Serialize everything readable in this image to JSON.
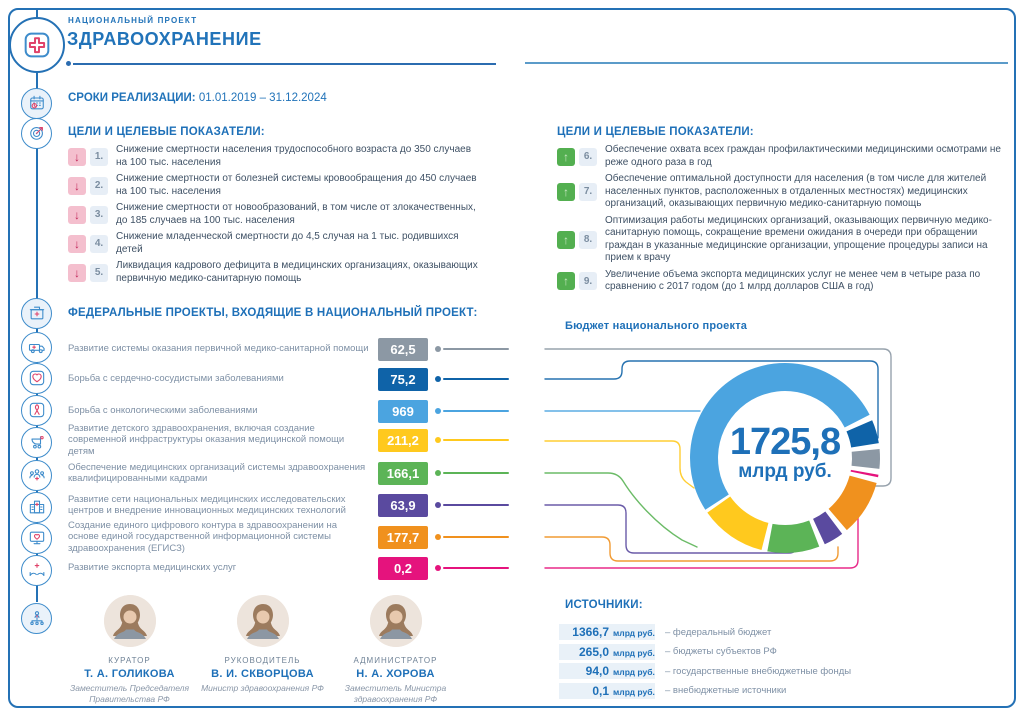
{
  "header": {
    "project_label": "НАЦИОНАЛЬНЫЙ ПРОЕКТ",
    "title": "ЗДРАВООХРАНЕНИЕ",
    "dates_label": "СРОКИ РЕАЛИЗАЦИИ:",
    "dates_value": "01.01.2019 – 31.12.2024"
  },
  "sidebar": {
    "icons": [
      "calendar",
      "target",
      "clinic",
      "ambulance",
      "heart",
      "cancer-ribbon",
      "stroller",
      "medical-staff",
      "hospital",
      "monitor-heart",
      "caring-hands",
      "org-structure"
    ]
  },
  "goals": {
    "heading": "ЦЕЛИ И ЦЕЛЕВЫЕ ПОКАЗАТЕЛИ:",
    "down_arrow": "↓",
    "up_arrow": "↑",
    "down_items": [
      {
        "num": "1",
        "text": "Снижение смертности населения трудоспособного возраста до 350 случаев на 100 тыс. населения"
      },
      {
        "num": "2",
        "text": "Снижение смертности от болезней системы кровообращения до 450 случаев на 100 тыс. населения"
      },
      {
        "num": "3",
        "text": "Снижение смертности от новообразований, в том числе от злокачественных, до 185 случаев на 100 тыс. населения"
      },
      {
        "num": "4",
        "text": "Снижение младенческой смертности до 4,5 случая на 1 тыс. родившихся детей"
      },
      {
        "num": "5",
        "text": "Ликвидация кадрового дефицита в медицинских организациях, оказывающих первичную медико-санитарную помощь"
      }
    ],
    "up_items": [
      {
        "num": "6",
        "text": "Обеспечение охвата всех граждан профилактическими медицинскими осмотрами не реже одного раза в год"
      },
      {
        "num": "7",
        "text": "Обеспечение оптимальной доступности для населения (в том числе для жителей населенных пунктов, расположенных в отдаленных местностях) медицинских организаций, оказывающих первичную медико-санитарную помощь"
      },
      {
        "num": "8",
        "text": "Оптимизация работы медицинских организаций, оказывающих первичную медико-санитарную помощь, сокращение времени ожидания в очереди при обращении граждан в указанные медицинские организации, упрощение процедуры записи на прием к врачу"
      },
      {
        "num": "9",
        "text": "Увеличение объема экспорта медицинских услуг не менее чем в четыре раза по сравнению с 2017 годом (до 1 млрд долларов США в год)"
      }
    ]
  },
  "projects": {
    "heading": "ФЕДЕРАЛЬНЫЕ ПРОЕКТЫ, ВХОДЯЩИЕ В НАЦИОНАЛЬНЫЙ ПРОЕКТ:",
    "items": [
      {
        "label": "Развитие системы оказания первичной медико-санитарной помощи",
        "value": "62,5",
        "color": "#8C98A4"
      },
      {
        "label": "Борьба с сердечно-сосудистыми заболеваниями",
        "value": "75,2",
        "color": "#0F63A8"
      },
      {
        "label": "Борьба с онкологическими заболеваниями",
        "value": "969",
        "color": "#4BA4E0"
      },
      {
        "label": "Развитие детского здравоохранения, включая создание современной инфраструктуры оказания медицинской помощи детям",
        "value": "211,2",
        "color": "#FFC91E"
      },
      {
        "label": "Обеспечение медицинских организаций системы здравоохранения квалифицированными кадрами",
        "value": "166,1",
        "color": "#5CB457"
      },
      {
        "label": "Развитие сети национальных медицинских исследовательских центров и внедрение инновационных медицинских технологий",
        "value": "63,9",
        "color": "#5A4A9F"
      },
      {
        "label": "Создание единого цифрового контура в здравоохранении на основе единой государственной информационной системы здравоохранения (ЕГИСЗ)",
        "value": "177,7",
        "color": "#F0911E"
      },
      {
        "label": "Развитие экспорта медицинских услуг",
        "value": "0,2",
        "color": "#E5137D"
      }
    ]
  },
  "chart_data": {
    "type": "pie",
    "title": "Бюджет национального проекта",
    "center_value": "1725,8",
    "center_unit": "млрд руб.",
    "total": 1725.8,
    "start_angle_deg": 237,
    "gap_deg": 3.6,
    "min_segment_deg": 1.5,
    "legend_position": "none",
    "segments": [
      {
        "name": "Борьба с онкологическими заболеваниями",
        "value": 969,
        "color": "#4BA4E0"
      },
      {
        "name": "Борьба с сердечно-сосудистыми заболеваниями",
        "value": 75.2,
        "color": "#0F63A8"
      },
      {
        "name": "Развитие системы оказания первичной медико-санитарной помощи",
        "value": 62.5,
        "color": "#8C98A4"
      },
      {
        "name": "Развитие экспорта медицинских услуг",
        "value": 0.2,
        "color": "#E5137D"
      },
      {
        "name": "Создание единого цифрового контура в здравоохранении (ЕГИСЗ)",
        "value": 177.7,
        "color": "#F0911E"
      },
      {
        "name": "Развитие сети национальных медицинских исследовательских центров",
        "value": 63.9,
        "color": "#5A4A9F"
      },
      {
        "name": "Обеспечение медицинских организаций квалифицированными кадрами",
        "value": 166.1,
        "color": "#5CB457"
      },
      {
        "name": "Развитие детского здравоохранения",
        "value": 211.2,
        "color": "#FFC91E"
      }
    ]
  },
  "sources": {
    "heading": "ИСТОЧНИКИ:",
    "items": [
      {
        "value": "1366,7",
        "unit": "млрд руб.",
        "label": "– федеральный бюджет"
      },
      {
        "value": "265,0",
        "unit": "млрд руб.",
        "label": "– бюджеты субъектов РФ"
      },
      {
        "value": "94,0",
        "unit": "млрд руб.",
        "label": "– государственные внебюджетные фонды"
      },
      {
        "value": "0,1",
        "unit": "млрд руб.",
        "label": "– внебюджетные источники"
      }
    ]
  },
  "people": [
    {
      "role": "КУРАТОР",
      "name": "Т. А. ГОЛИКОВА",
      "title": "Заместитель Председателя Правительства РФ"
    },
    {
      "role": "РУКОВОДИТЕЛЬ",
      "name": "В. И. СКВОРЦОВА",
      "title": "Министр здравоохранения РФ"
    },
    {
      "role": "АДМИНИСТРАТОР",
      "name": "Н. А. ХОРОВА",
      "title": "Заместитель Министра здравоохранения РФ"
    }
  ]
}
